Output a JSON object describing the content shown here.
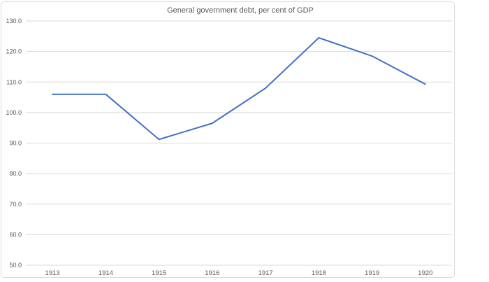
{
  "chart_data": {
    "type": "line",
    "title": "General government debt, per cent of GDP",
    "categories": [
      "1913",
      "1914",
      "1915",
      "1916",
      "1917",
      "1918",
      "1919",
      "1920"
    ],
    "series": [
      {
        "values": [
          106.0,
          106.0,
          91.2,
          96.5,
          108.0,
          124.5,
          118.5,
          109.3
        ],
        "color": "#4472C4"
      }
    ],
    "ylim": [
      50,
      130
    ],
    "ytick_step": 10,
    "ytick_labels": [
      "130.0",
      "120.0",
      "110.0",
      "100.0",
      "90.0",
      "80.0",
      "70.0",
      "60.0",
      "50.0"
    ],
    "xlabel": "",
    "ylabel": "",
    "grid": true,
    "legend": "none",
    "colors": {
      "line": "#4472C4",
      "gridline": "#D9D9D9",
      "axis_text": "#595959",
      "title_text": "#595959",
      "frame_border": "#D9D9D9",
      "background": "#FFFFFF"
    }
  }
}
